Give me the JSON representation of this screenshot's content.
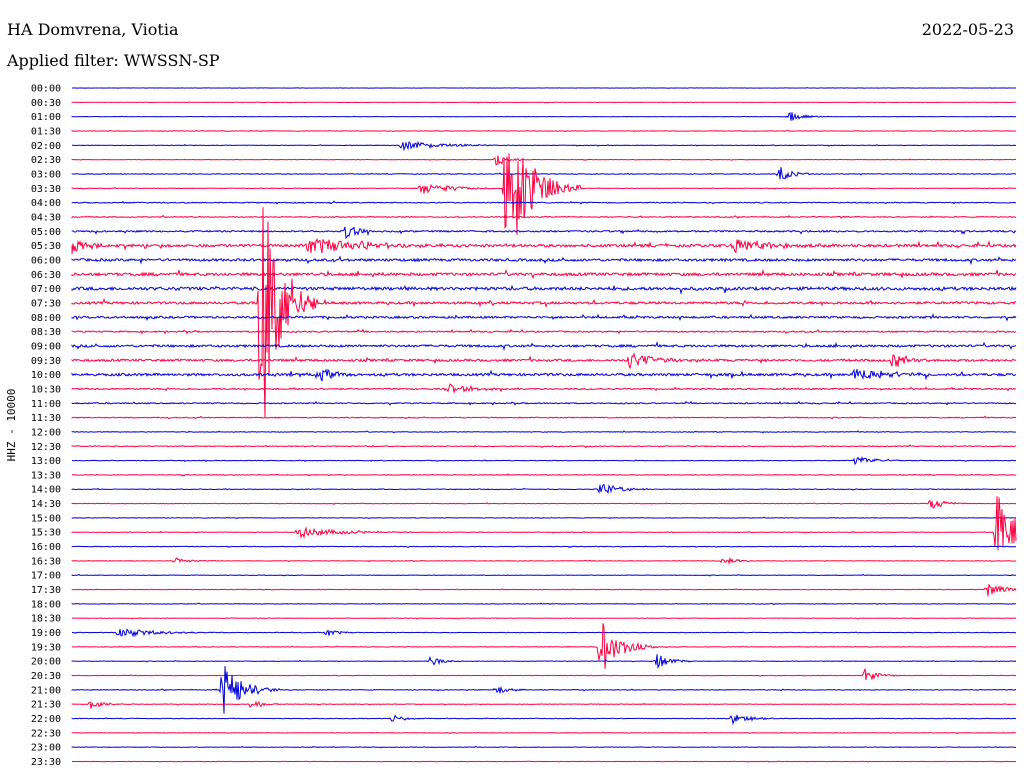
{
  "header": {
    "station": "HA Domvrena, Viotia",
    "date": "2022-05-23",
    "filter": "Applied filter: WWSSN-SP"
  },
  "chart_data": {
    "type": "line",
    "title": "",
    "xlabel": "",
    "ylabel": "HHZ - 10000",
    "colors": [
      "#0000dd",
      "#ff0040"
    ],
    "trace_levels": [
      0.05,
      0.08,
      0.06,
      0.1,
      0.12,
      0.1,
      0.15,
      0.12,
      0.2,
      0.22,
      0.35,
      0.6,
      0.55,
      0.65,
      0.7,
      0.55,
      0.45,
      0.3,
      0.5,
      0.5,
      0.55,
      0.3,
      0.25,
      0.2,
      0.15,
      0.2,
      0.12,
      0.15,
      0.15,
      0.12,
      0.1,
      0.12,
      0.12,
      0.1,
      0.12,
      0.1,
      0.12,
      0.1,
      0.1,
      0.12,
      0.12,
      0.1,
      0.15,
      0.12,
      0.1,
      0.1,
      0.12,
      0.08
    ],
    "events": [
      {
        "row": 2,
        "x": 0.76,
        "amp": 6,
        "dur": 0.02
      },
      {
        "row": 4,
        "x": 0.35,
        "amp": 5,
        "dur": 0.06
      },
      {
        "row": 5,
        "x": 0.45,
        "amp": 7,
        "dur": 0.02
      },
      {
        "row": 6,
        "x": 0.75,
        "amp": 8,
        "dur": 0.02
      },
      {
        "row": 7,
        "x": 0.46,
        "amp": 80,
        "dur": 0.04
      },
      {
        "row": 7,
        "x": 0.37,
        "amp": 6,
        "dur": 0.05
      },
      {
        "row": 10,
        "x": 0.29,
        "amp": 8,
        "dur": 0.02
      },
      {
        "row": 11,
        "x": 0.0,
        "amp": 12,
        "dur": 0.02
      },
      {
        "row": 11,
        "x": 0.25,
        "amp": 9,
        "dur": 0.1
      },
      {
        "row": 11,
        "x": 0.7,
        "amp": 8,
        "dur": 0.06
      },
      {
        "row": 15,
        "x": 0.2,
        "amp": 150,
        "dur": 0.03
      },
      {
        "row": 19,
        "x": 0.59,
        "amp": 8,
        "dur": 0.04
      },
      {
        "row": 19,
        "x": 0.87,
        "amp": 10,
        "dur": 0.02
      },
      {
        "row": 20,
        "x": 0.83,
        "amp": 8,
        "dur": 0.05
      },
      {
        "row": 20,
        "x": 0.26,
        "amp": 7,
        "dur": 0.03
      },
      {
        "row": 21,
        "x": 0.4,
        "amp": 5,
        "dur": 0.04
      },
      {
        "row": 26,
        "x": 0.83,
        "amp": 5,
        "dur": 0.03
      },
      {
        "row": 28,
        "x": 0.56,
        "amp": 7,
        "dur": 0.03
      },
      {
        "row": 29,
        "x": 0.91,
        "amp": 7,
        "dur": 0.02
      },
      {
        "row": 31,
        "x": 0.24,
        "amp": 6,
        "dur": 0.06
      },
      {
        "row": 31,
        "x": 0.98,
        "amp": 40,
        "dur": 0.03
      },
      {
        "row": 33,
        "x": 0.11,
        "amp": 4,
        "dur": 0.02
      },
      {
        "row": 33,
        "x": 0.69,
        "amp": 4,
        "dur": 0.02
      },
      {
        "row": 35,
        "x": 0.97,
        "amp": 7,
        "dur": 0.03
      },
      {
        "row": 38,
        "x": 0.05,
        "amp": 5,
        "dur": 0.06
      },
      {
        "row": 38,
        "x": 0.27,
        "amp": 4,
        "dur": 0.02
      },
      {
        "row": 39,
        "x": 0.56,
        "amp": 28,
        "dur": 0.03
      },
      {
        "row": 40,
        "x": 0.38,
        "amp": 5,
        "dur": 0.02
      },
      {
        "row": 40,
        "x": 0.62,
        "amp": 8,
        "dur": 0.02
      },
      {
        "row": 41,
        "x": 0.84,
        "amp": 8,
        "dur": 0.02
      },
      {
        "row": 42,
        "x": 0.16,
        "amp": 28,
        "dur": 0.03
      },
      {
        "row": 42,
        "x": 0.45,
        "amp": 5,
        "dur": 0.02
      },
      {
        "row": 43,
        "x": 0.02,
        "amp": 5,
        "dur": 0.02
      },
      {
        "row": 43,
        "x": 0.19,
        "amp": 5,
        "dur": 0.02
      },
      {
        "row": 44,
        "x": 0.34,
        "amp": 4,
        "dur": 0.02
      },
      {
        "row": 44,
        "x": 0.7,
        "amp": 5,
        "dur": 0.03
      }
    ],
    "rows": [
      "00:00",
      "00:30",
      "01:00",
      "01:30",
      "02:00",
      "02:30",
      "03:00",
      "03:30",
      "04:00",
      "04:30",
      "05:00",
      "05:30",
      "06:00",
      "06:30",
      "07:00",
      "07:30",
      "08:00",
      "08:30",
      "09:00",
      "09:30",
      "10:00",
      "10:30",
      "11:00",
      "11:30",
      "12:00",
      "12:30",
      "13:00",
      "13:30",
      "14:00",
      "14:30",
      "15:00",
      "15:30",
      "16:00",
      "16:30",
      "17:00",
      "17:30",
      "18:00",
      "18:30",
      "19:00",
      "19:30",
      "20:00",
      "20:30",
      "21:00",
      "21:30",
      "22:00",
      "22:30",
      "23:00",
      "23:30"
    ]
  }
}
